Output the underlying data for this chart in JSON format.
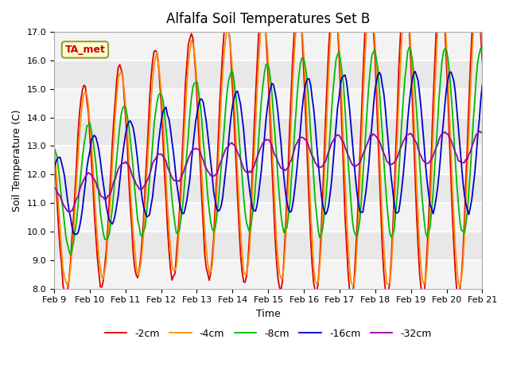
{
  "title": "Alfalfa Soil Temperatures Set B",
  "xlabel": "Time",
  "ylabel": "Soil Temperature (C)",
  "ylim": [
    8.0,
    17.0
  ],
  "yticks": [
    8.0,
    9.0,
    10.0,
    11.0,
    12.0,
    13.0,
    14.0,
    15.0,
    16.0,
    17.0
  ],
  "plot_bg_color": "#e8e8e8",
  "colors": {
    "-2cm": "#dd0000",
    "-4cm": "#ff8c00",
    "-8cm": "#00bb00",
    "-16cm": "#0000cc",
    "-32cm": "#9900aa"
  },
  "annotation_text": "TA_met",
  "annotation_color": "#cc0000",
  "annotation_bg": "#ffffcc",
  "x_tick_labels": [
    "Feb 9",
    "Feb 10",
    "Feb 11",
    "Feb 12",
    "Feb 13",
    "Feb 14",
    "Feb 15",
    "Feb 16",
    "Feb 17",
    "Feb 18",
    "Feb 19",
    "Feb 20",
    "Feb 21"
  ]
}
